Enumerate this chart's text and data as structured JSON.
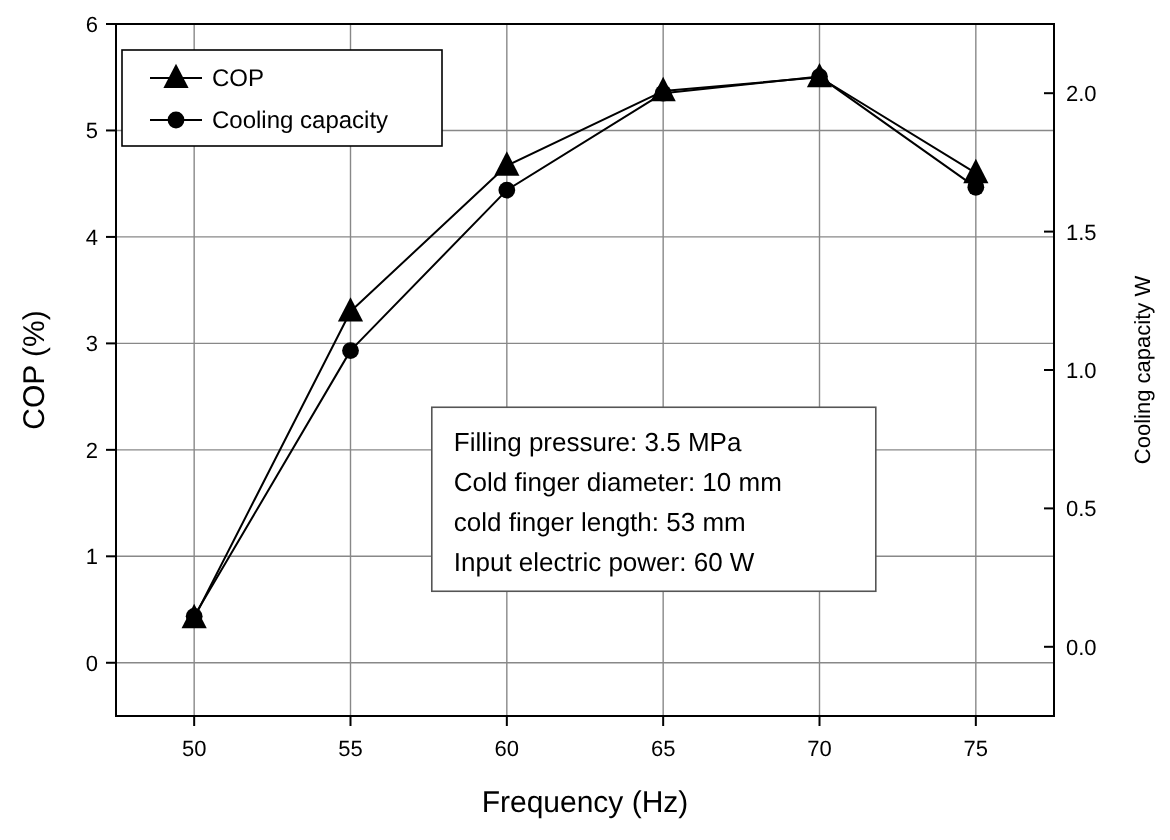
{
  "chart_data": {
    "type": "line",
    "xlabel": "Frequency  (Hz)",
    "ylabel": "COP  (%)",
    "y2label": "Cooling capacity W",
    "x": [
      50,
      55,
      60,
      65,
      70,
      75
    ],
    "xlim": [
      47.5,
      77.5
    ],
    "xticks": [
      50,
      55,
      60,
      65,
      70,
      75
    ],
    "ylim": [
      -0.5,
      6
    ],
    "yticks": [
      0,
      1,
      2,
      3,
      4,
      5,
      6
    ],
    "y2lim": [
      -0.25,
      2.25
    ],
    "y2ticks": [
      {
        "value": 0,
        "label": "0.0"
      },
      {
        "value": 0.5,
        "label": "0.5"
      },
      {
        "value": 1,
        "label": "1.0"
      },
      {
        "value": 1.5,
        "label": "1.5"
      },
      {
        "value": 2,
        "label": "2.0"
      }
    ],
    "series": [
      {
        "name": "COP",
        "color": "#000000",
        "marker": "triangle",
        "values": [
          0.42,
          3.3,
          4.67,
          5.37,
          5.5,
          4.6
        ]
      },
      {
        "name": "Cooling capacity",
        "color": "#000000",
        "marker": "circle",
        "axis": "y2",
        "values": [
          0.11,
          1.07,
          1.65,
          2.0,
          2.06,
          1.66
        ]
      }
    ],
    "grid": true,
    "legend": "top left",
    "line_style": "solid",
    "annotations": [
      "Filling pressure: 3.5 MPa",
      "Cold finger diameter: 10 mm",
      "cold finger length: 53 mm",
      "Input electric power: 60 W"
    ]
  }
}
